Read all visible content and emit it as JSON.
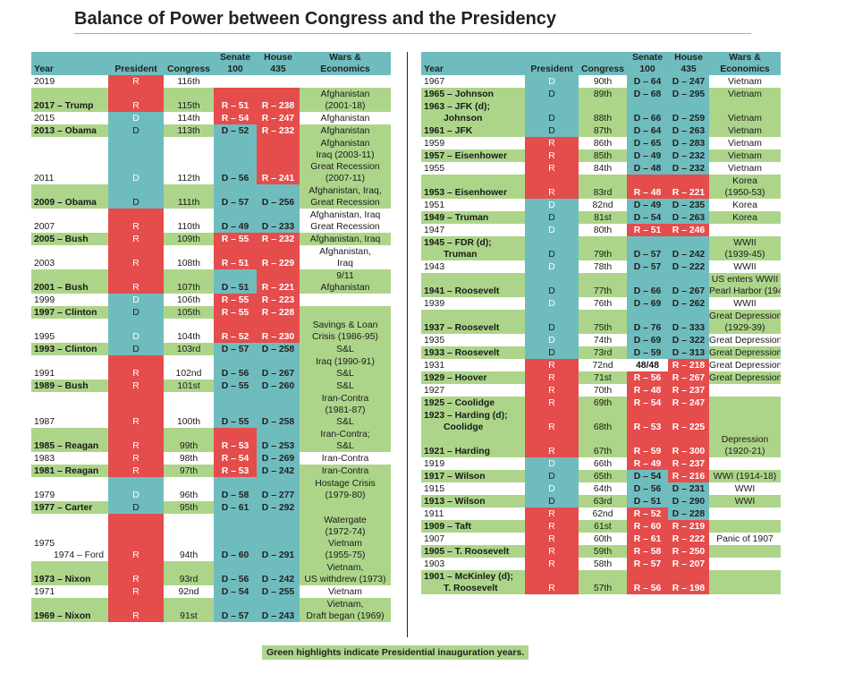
{
  "title": "Balance of Power between Congress and the Presidency",
  "footnote": "Green highlights indicate Presidential inauguration years.",
  "colors": {
    "republican": "#e54c4c",
    "democrat": "#6fbcbe",
    "inauguration": "#add58a"
  },
  "headers": {
    "year": "Year",
    "president": "President",
    "congress": "Congress",
    "senate": "Senate",
    "senate_seats": "100",
    "house": "House",
    "house_seats": "435",
    "wars": "Wars &",
    "economics": "Economics"
  },
  "left_rows": [
    {
      "year": [
        "2019"
      ],
      "inaug": false,
      "pres": "R",
      "cong": "116th",
      "sen": "",
      "house": "",
      "war": []
    },
    {
      "year": [
        "2017 – Trump"
      ],
      "inaug": true,
      "pres": "R",
      "cong": "115th",
      "sen": "R – 51",
      "house": "R – 238",
      "war": [
        "Afghanistan",
        "(2001-18)"
      ]
    },
    {
      "year": [
        "2015"
      ],
      "inaug": false,
      "pres": "D",
      "cong": "114th",
      "sen": "R – 54",
      "house": "R – 247",
      "war": [
        "Afghanistan"
      ]
    },
    {
      "year": [
        "2013 – Obama"
      ],
      "inaug": true,
      "pres": "D",
      "cong": "113th",
      "sen": "D – 52",
      "house": "R – 232",
      "war": [
        "Afghanistan"
      ]
    },
    {
      "year": [
        "2011"
      ],
      "inaug": false,
      "pres": "D",
      "cong": "112th",
      "sen": "D – 56",
      "house": "R – 241",
      "war": [
        "Afghanistan",
        "Iraq (2003-11)",
        "Great Recession",
        "(2007-11)"
      ],
      "war_green": true
    },
    {
      "year": [
        "2009 – Obama"
      ],
      "inaug": true,
      "pres": "D",
      "cong": "111th",
      "sen": "D – 57",
      "house": "D – 256",
      "war": [
        "Afghanistan, Iraq,",
        "Great Recession"
      ]
    },
    {
      "year": [
        "2007"
      ],
      "inaug": false,
      "pres": "R",
      "cong": "110th",
      "sen": "D – 49",
      "house": "D – 233",
      "war": [
        "Afghanistan, Iraq",
        "Great Recession"
      ]
    },
    {
      "year": [
        "2005 – Bush"
      ],
      "inaug": true,
      "pres": "R",
      "cong": "109th",
      "sen": "R – 55",
      "house": "R – 232",
      "war": [
        "Afghanistan, Iraq"
      ]
    },
    {
      "year": [
        "2003"
      ],
      "inaug": false,
      "pres": "R",
      "cong": "108th",
      "sen": "R – 51",
      "house": "R – 229",
      "war": [
        "Afghanistan,",
        "Iraq"
      ]
    },
    {
      "year": [
        "2001 – Bush"
      ],
      "inaug": true,
      "pres": "R",
      "cong": "107th",
      "sen": "D – 51",
      "house": "R – 221",
      "war": [
        "9/11",
        "Afghanistan"
      ]
    },
    {
      "year": [
        "1999"
      ],
      "inaug": false,
      "pres": "D",
      "cong": "106th",
      "sen": "R – 55",
      "house": "R – 223",
      "war": []
    },
    {
      "year": [
        "1997 – Clinton"
      ],
      "inaug": true,
      "pres": "D",
      "cong": "105th",
      "sen": "R – 55",
      "house": "R – 228",
      "war": []
    },
    {
      "year": [
        "1995"
      ],
      "inaug": false,
      "pres": "D",
      "cong": "104th",
      "sen": "R – 52",
      "house": "R – 230",
      "war": [
        "Savings & Loan",
        "Crisis (1986-95)"
      ],
      "war_green": true
    },
    {
      "year": [
        "1993 – Clinton"
      ],
      "inaug": true,
      "pres": "D",
      "cong": "103rd",
      "sen": "D – 57",
      "house": "D – 258",
      "war": [
        "S&L"
      ]
    },
    {
      "year": [
        "1991"
      ],
      "inaug": false,
      "pres": "R",
      "cong": "102nd",
      "sen": "D – 56",
      "house": "D – 267",
      "war": [
        "Iraq (1990-91)",
        "S&L"
      ],
      "war_green": true
    },
    {
      "year": [
        "1989 – Bush"
      ],
      "inaug": true,
      "pres": "R",
      "cong": "101st",
      "sen": "D – 55",
      "house": "D – 260",
      "war": [
        "S&L"
      ]
    },
    {
      "year": [
        "1987"
      ],
      "inaug": false,
      "pres": "R",
      "cong": "100th",
      "sen": "D – 55",
      "house": "D – 258",
      "war": [
        "Iran-Contra",
        "(1981-87)",
        "S&L"
      ],
      "war_green": true
    },
    {
      "year": [
        "1985 – Reagan"
      ],
      "inaug": true,
      "pres": "R",
      "cong": "99th",
      "sen": "R – 53",
      "house": "D – 253",
      "war": [
        "Iran-Contra;",
        "S&L"
      ]
    },
    {
      "year": [
        "1983"
      ],
      "inaug": false,
      "pres": "R",
      "cong": "98th",
      "sen": "R – 54",
      "house": "D – 269",
      "war": [
        "Iran-Contra"
      ]
    },
    {
      "year": [
        "1981 – Reagan"
      ],
      "inaug": true,
      "pres": "R",
      "cong": "97th",
      "sen": "R – 53",
      "house": "D – 242",
      "war": [
        "Iran-Contra"
      ]
    },
    {
      "year": [
        "1979"
      ],
      "inaug": false,
      "pres": "D",
      "cong": "96th",
      "sen": "D – 58",
      "house": "D – 277",
      "war": [
        "Hostage Crisis",
        "(1979-80)"
      ],
      "war_green": true
    },
    {
      "year": [
        "1977 – Carter"
      ],
      "inaug": true,
      "pres": "D",
      "cong": "95th",
      "sen": "D – 61",
      "house": "D – 292",
      "war": []
    },
    {
      "year": [
        "1975",
        "1974 – Ford"
      ],
      "inaug": false,
      "pres": "R",
      "cong": "94th",
      "sen": "D – 60",
      "house": "D – 291",
      "war": [
        "Watergate",
        "(1972-74)",
        "Vietnam",
        "(1955-75)"
      ],
      "war_green": true
    },
    {
      "year": [
        "1973 – Nixon"
      ],
      "inaug": true,
      "pres": "R",
      "cong": "93rd",
      "sen": "D – 56",
      "house": "D – 242",
      "war": [
        "Vietnam,",
        "US withdrew (1973)"
      ]
    },
    {
      "year": [
        "1971"
      ],
      "inaug": false,
      "pres": "R",
      "cong": "92nd",
      "sen": "D – 54",
      "house": "D – 255",
      "war": [
        "Vietnam"
      ]
    },
    {
      "year": [
        "1969 – Nixon"
      ],
      "inaug": true,
      "pres": "R",
      "cong": "91st",
      "sen": "D – 57",
      "house": "D – 243",
      "war": [
        "Vietnam,",
        "Draft began (1969)"
      ]
    }
  ],
  "right_rows": [
    {
      "year": [
        "1967"
      ],
      "inaug": false,
      "pres": "D",
      "cong": "90th",
      "sen": "D – 64",
      "house": "D – 247",
      "war": [
        "Vietnam"
      ]
    },
    {
      "year": [
        "1965 – Johnson"
      ],
      "inaug": true,
      "pres": "D",
      "cong": "89th",
      "sen": "D – 68",
      "house": "D – 295",
      "war": [
        "Vietnam"
      ]
    },
    {
      "year": [
        "1963 – JFK (d);",
        "Johnson"
      ],
      "inaug": true,
      "pres": "D",
      "cong": "88th",
      "sen": "D – 66",
      "house": "D – 259",
      "war": [
        "Vietnam"
      ]
    },
    {
      "year": [
        "1961 – JFK"
      ],
      "inaug": true,
      "pres": "D",
      "cong": "87th",
      "sen": "D – 64",
      "house": "D – 263",
      "war": [
        "Vietnam"
      ]
    },
    {
      "year": [
        "1959"
      ],
      "inaug": false,
      "pres": "R",
      "cong": "86th",
      "sen": "D – 65",
      "house": "D – 283",
      "war": [
        "Vietnam"
      ]
    },
    {
      "year": [
        "1957 – Eisenhower"
      ],
      "inaug": true,
      "pres": "R",
      "cong": "85th",
      "sen": "D – 49",
      "house": "D – 232",
      "war": [
        "Vietnam"
      ]
    },
    {
      "year": [
        "1955"
      ],
      "inaug": false,
      "pres": "R",
      "cong": "84th",
      "sen": "D – 48",
      "house": "D – 232",
      "war": [
        "Vietnam"
      ]
    },
    {
      "year": [
        "1953 – Eisenhower"
      ],
      "inaug": true,
      "pres": "R",
      "cong": "83rd",
      "sen": "R – 48",
      "house": "R – 221",
      "war": [
        "Korea",
        "(1950-53)"
      ]
    },
    {
      "year": [
        "1951"
      ],
      "inaug": false,
      "pres": "D",
      "cong": "82nd",
      "sen": "D – 49",
      "house": "D – 235",
      "war": [
        "Korea"
      ]
    },
    {
      "year": [
        "1949 – Truman"
      ],
      "inaug": true,
      "pres": "D",
      "cong": "81st",
      "sen": "D – 54",
      "house": "D – 263",
      "war": [
        "Korea"
      ]
    },
    {
      "year": [
        "1947"
      ],
      "inaug": false,
      "pres": "D",
      "cong": "80th",
      "sen": "R – 51",
      "house": "R – 246",
      "war": []
    },
    {
      "year": [
        "1945 – FDR (d);",
        "Truman"
      ],
      "inaug": true,
      "pres": "D",
      "cong": "79th",
      "sen": "D – 57",
      "house": "D – 242",
      "war": [
        "WWII",
        "(1939-45)"
      ]
    },
    {
      "year": [
        "1943"
      ],
      "inaug": false,
      "pres": "D",
      "cong": "78th",
      "sen": "D – 57",
      "house": "D – 222",
      "war": [
        "WWII"
      ]
    },
    {
      "year": [
        "1941 – Roosevelt"
      ],
      "inaug": true,
      "pres": "D",
      "cong": "77th",
      "sen": "D – 66",
      "house": "D – 267",
      "war": [
        "US enters WWII",
        "Pearl Harbor (1941)"
      ]
    },
    {
      "year": [
        "1939"
      ],
      "inaug": false,
      "pres": "D",
      "cong": "76th",
      "sen": "D – 69",
      "house": "D – 262",
      "war": [
        "WWII"
      ]
    },
    {
      "year": [
        "1937 – Roosevelt"
      ],
      "inaug": true,
      "pres": "D",
      "cong": "75th",
      "sen": "D – 76",
      "house": "D – 333",
      "war": [
        "Great Depression",
        "(1929-39)"
      ]
    },
    {
      "year": [
        "1935"
      ],
      "inaug": false,
      "pres": "D",
      "cong": "74th",
      "sen": "D – 69",
      "house": "D – 322",
      "war": [
        "Great Depression"
      ]
    },
    {
      "year": [
        "1933 – Roosevelt"
      ],
      "inaug": true,
      "pres": "D",
      "cong": "73rd",
      "sen": "D – 59",
      "house": "D – 313",
      "war": [
        "Great Depression"
      ]
    },
    {
      "year": [
        "1931"
      ],
      "inaug": false,
      "pres": "R",
      "cong": "72nd",
      "sen": "48/48",
      "house": "R – 218",
      "war": [
        "Great Depression"
      ]
    },
    {
      "year": [
        "1929 – Hoover"
      ],
      "inaug": true,
      "pres": "R",
      "cong": "71st",
      "sen": "R – 56",
      "house": "R – 267",
      "war": [
        "Great Depression"
      ]
    },
    {
      "year": [
        "1927"
      ],
      "inaug": false,
      "pres": "R",
      "cong": "70th",
      "sen": "R – 48",
      "house": "R – 237",
      "war": []
    },
    {
      "year": [
        "1925 – Coolidge"
      ],
      "inaug": true,
      "pres": "R",
      "cong": "69th",
      "sen": "R – 54",
      "house": "R – 247",
      "war": []
    },
    {
      "year": [
        "1923 – Harding (d);",
        "Coolidge"
      ],
      "inaug": true,
      "pres": "R",
      "cong": "68th",
      "sen": "R – 53",
      "house": "R – 225",
      "war": []
    },
    {
      "year": [
        "1921 – Harding"
      ],
      "inaug": true,
      "pres": "R",
      "cong": "67th",
      "sen": "R – 59",
      "house": "R – 300",
      "war": [
        "Depression",
        "(1920-21)"
      ]
    },
    {
      "year": [
        "1919"
      ],
      "inaug": false,
      "pres": "D",
      "cong": "66th",
      "sen": "R – 49",
      "house": "R – 237",
      "war": []
    },
    {
      "year": [
        "1917 – Wilson"
      ],
      "inaug": true,
      "pres": "D",
      "cong": "65th",
      "sen": "D – 54",
      "house": "R – 216",
      "war": [
        "WWI (1914-18)"
      ]
    },
    {
      "year": [
        "1915"
      ],
      "inaug": false,
      "pres": "D",
      "cong": "64th",
      "sen": "D – 56",
      "house": "D – 231",
      "war": [
        "WWI"
      ]
    },
    {
      "year": [
        "1913 – Wilson"
      ],
      "inaug": true,
      "pres": "D",
      "cong": "63rd",
      "sen": "D – 51",
      "house": "D – 290",
      "war": [
        "WWI"
      ]
    },
    {
      "year": [
        "1911"
      ],
      "inaug": false,
      "pres": "R",
      "cong": "62nd",
      "sen": "R – 52",
      "house": "D – 228",
      "war": []
    },
    {
      "year": [
        "1909 – Taft"
      ],
      "inaug": true,
      "pres": "R",
      "cong": "61st",
      "sen": "R – 60",
      "house": "R – 219",
      "war": []
    },
    {
      "year": [
        "1907"
      ],
      "inaug": false,
      "pres": "R",
      "cong": "60th",
      "sen": "R – 61",
      "house": "R – 222",
      "war": [
        "Panic of 1907"
      ]
    },
    {
      "year": [
        "1905 – T. Roosevelt"
      ],
      "inaug": true,
      "pres": "R",
      "cong": "59th",
      "sen": "R – 58",
      "house": "R – 250",
      "war": []
    },
    {
      "year": [
        "1903"
      ],
      "inaug": false,
      "pres": "R",
      "cong": "58th",
      "sen": "R – 57",
      "house": "R – 207",
      "war": []
    },
    {
      "year": [
        "1901 – McKinley (d);",
        "T. Roosevelt"
      ],
      "inaug": true,
      "pres": "R",
      "cong": "57th",
      "sen": "R – 56",
      "house": "R – 198",
      "war": []
    }
  ]
}
